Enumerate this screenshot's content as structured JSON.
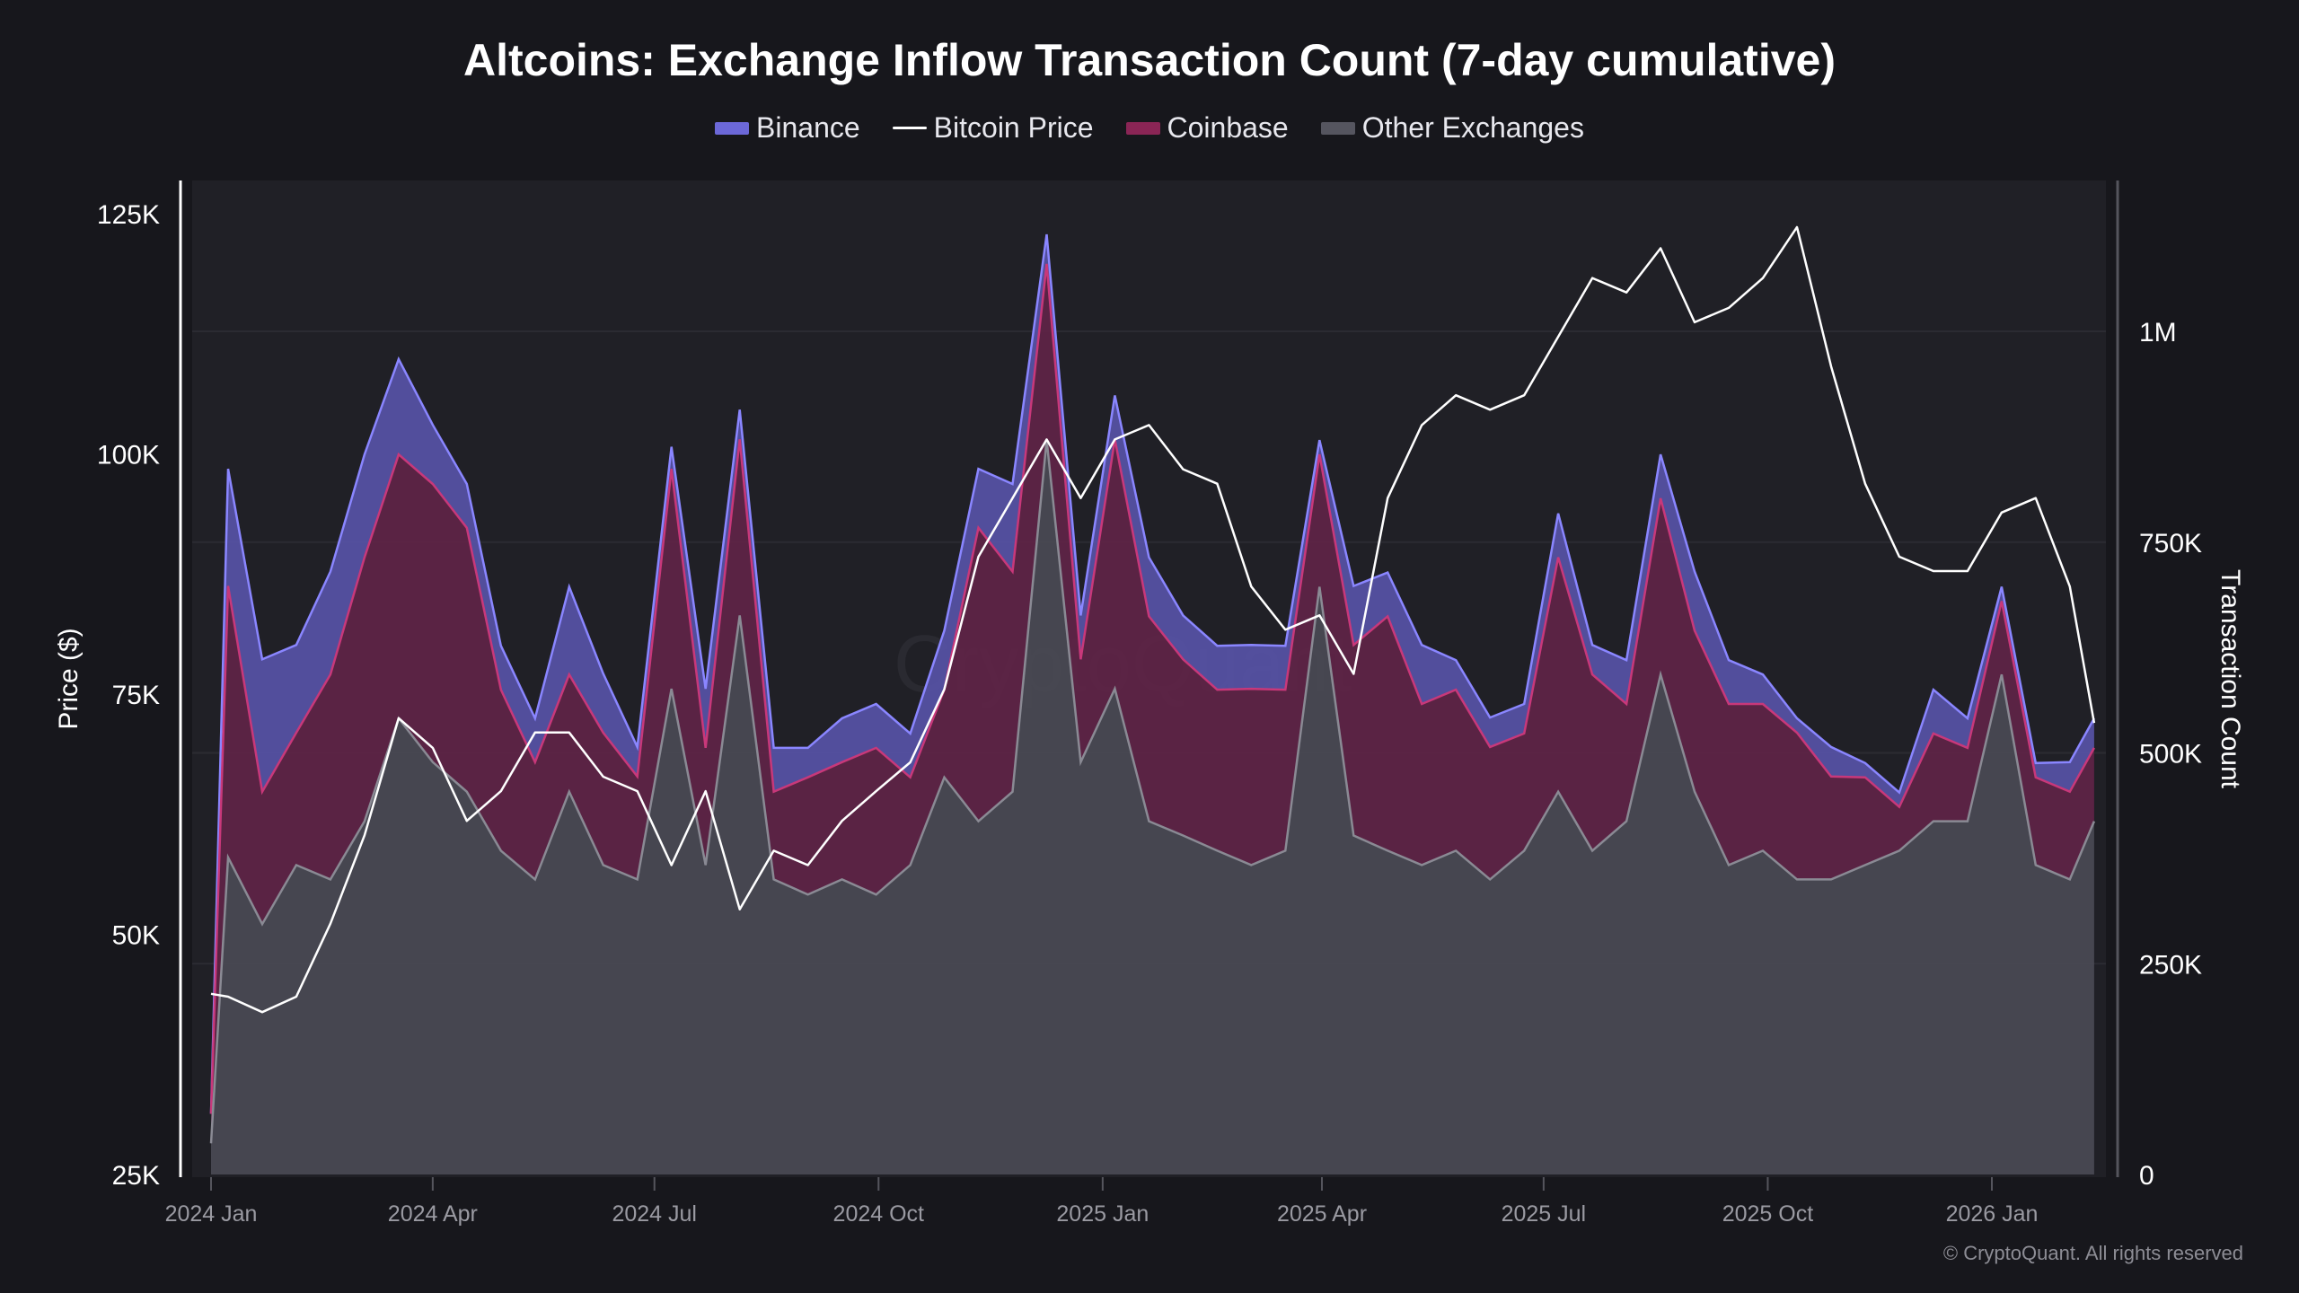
{
  "title": "Altcoins: Exchange Inflow Transaction Count (7-day cumulative)",
  "legend": [
    {
      "label": "Binance",
      "color": "#6c68d8",
      "kind": "area"
    },
    {
      "label": "Bitcoin Price",
      "color": "#ffffff",
      "kind": "line"
    },
    {
      "label": "Coinbase",
      "color": "#8a2555",
      "kind": "area"
    },
    {
      "label": "Other Exchanges",
      "color": "#55555f",
      "kind": "area"
    }
  ],
  "copyright": "© CryptoQuant. All rights reserved",
  "watermark": "CryptoQuant",
  "chart_data": {
    "type": "area",
    "stacked": true,
    "title": "Altcoins: Exchange Inflow Transaction Count (7-day cumulative)",
    "ylabel_left": "Price ($)",
    "ylabel_right": "Transaction Count",
    "ylim_left": [
      25000,
      125000
    ],
    "ylim_right": [
      0,
      1150000
    ],
    "yticks_left": [
      "125K",
      "100K",
      "75K",
      "50K",
      "25K"
    ],
    "yticks_left_values": [
      125000,
      100000,
      75000,
      50000,
      25000
    ],
    "yticks_right": [
      "1M",
      "750K",
      "500K",
      "250K",
      "0"
    ],
    "yticks_right_values": [
      1000000,
      750000,
      500000,
      250000,
      0
    ],
    "xticks": [
      "2024 Jan",
      "2024 Apr",
      "2024 Jul",
      "2024 Oct",
      "2025 Jan",
      "2025 Apr",
      "2025 Jul",
      "2025 Oct",
      "2026 Jan"
    ],
    "xticks_dates": [
      "2024-01-01",
      "2024-04-01",
      "2024-07-01",
      "2024-10-01",
      "2025-01-01",
      "2025-04-01",
      "2025-07-01",
      "2025-10-01",
      "2026-01-01"
    ],
    "grid": true,
    "legend_position": "top",
    "x": [
      "2024-01-01",
      "2024-01-08",
      "2024-01-22",
      "2024-02-05",
      "2024-02-19",
      "2024-03-04",
      "2024-03-18",
      "2024-04-01",
      "2024-04-15",
      "2024-04-29",
      "2024-05-13",
      "2024-05-27",
      "2024-06-10",
      "2024-06-24",
      "2024-07-08",
      "2024-07-22",
      "2024-08-05",
      "2024-08-19",
      "2024-09-02",
      "2024-09-16",
      "2024-09-30",
      "2024-10-14",
      "2024-10-28",
      "2024-11-11",
      "2024-11-25",
      "2024-12-09",
      "2024-12-23",
      "2025-01-06",
      "2025-01-20",
      "2025-02-03",
      "2025-02-17",
      "2025-03-03",
      "2025-03-17",
      "2025-03-31",
      "2025-04-14",
      "2025-04-28",
      "2025-05-12",
      "2025-05-26",
      "2025-06-09",
      "2025-06-23",
      "2025-07-07",
      "2025-07-21",
      "2025-08-04",
      "2025-08-18",
      "2025-09-01",
      "2025-09-15",
      "2025-09-29",
      "2025-10-13",
      "2025-10-27",
      "2025-11-10",
      "2025-11-24",
      "2025-12-08",
      "2025-12-22",
      "2026-01-05",
      "2026-01-19",
      "2026-02-02",
      "2026-02-12"
    ],
    "series": [
      {
        "name": "Other Exchanges",
        "axis": "right",
        "color": "#55555f",
        "values": [
          37000,
          376000,
          297000,
          367000,
          350000,
          419000,
          541000,
          489000,
          454000,
          384000,
          350000,
          454000,
          367000,
          350000,
          576000,
          367000,
          663000,
          350000,
          332000,
          350000,
          332000,
          367000,
          471000,
          419000,
          454000,
          871000,
          489000,
          576000,
          419000,
          402000,
          384000,
          367000,
          384000,
          697000,
          402000,
          384000,
          367000,
          384000,
          350000,
          384000,
          454000,
          384000,
          419000,
          593000,
          454000,
          367000,
          384000,
          350000,
          350000,
          367000,
          384000,
          419000,
          419000,
          593000,
          367000,
          350000,
          419000
        ]
      },
      {
        "name": "Coinbase",
        "axis": "right",
        "color": "#8a2555",
        "values": [
          35000,
          322000,
          157000,
          157000,
          243000,
          313000,
          313000,
          330000,
          313000,
          191000,
          139000,
          139000,
          157000,
          122000,
          261000,
          139000,
          209000,
          104000,
          139000,
          139000,
          174000,
          104000,
          104000,
          348000,
          261000,
          209000,
          122000,
          296000,
          243000,
          209000,
          191000,
          209000,
          191000,
          157000,
          226000,
          278000,
          191000,
          191000,
          157000,
          139000,
          278000,
          209000,
          139000,
          209000,
          191000,
          191000,
          174000,
          174000,
          122000,
          104000,
          52000,
          104000,
          87000,
          87000,
          104000,
          104000,
          87000
        ]
      },
      {
        "name": "Binance",
        "axis": "right",
        "color": "#6c68d8",
        "values": [
          0,
          139000,
          157000,
          104000,
          122000,
          122000,
          113000,
          70000,
          52000,
          52000,
          52000,
          104000,
          70000,
          35000,
          26000,
          70000,
          35000,
          52000,
          35000,
          52000,
          52000,
          52000,
          70000,
          70000,
          104000,
          35000,
          52000,
          52000,
          70000,
          52000,
          52000,
          52000,
          52000,
          17000,
          70000,
          52000,
          70000,
          35000,
          35000,
          35000,
          52000,
          35000,
          52000,
          52000,
          70000,
          52000,
          35000,
          17000,
          35000,
          17000,
          17000,
          52000,
          35000,
          17000,
          17000,
          35000,
          35000
        ]
      },
      {
        "name": "Bitcoin Price",
        "axis": "left",
        "type": "line",
        "color": "#ffffff",
        "values": [
          43800,
          43500,
          41900,
          43500,
          51100,
          60300,
          72500,
          69400,
          61800,
          64900,
          71000,
          71000,
          66400,
          64900,
          57200,
          64900,
          52600,
          58700,
          57200,
          61800,
          64900,
          67900,
          75500,
          89300,
          95400,
          101500,
          95400,
          101500,
          103000,
          98400,
          96900,
          86200,
          81700,
          83200,
          77100,
          95400,
          103000,
          106100,
          104600,
          106100,
          112200,
          118300,
          116800,
          121400,
          113700,
          115200,
          118300,
          123600,
          109100,
          96900,
          89300,
          87800,
          87800,
          93900,
          95400,
          86200,
          72000
        ]
      }
    ]
  }
}
